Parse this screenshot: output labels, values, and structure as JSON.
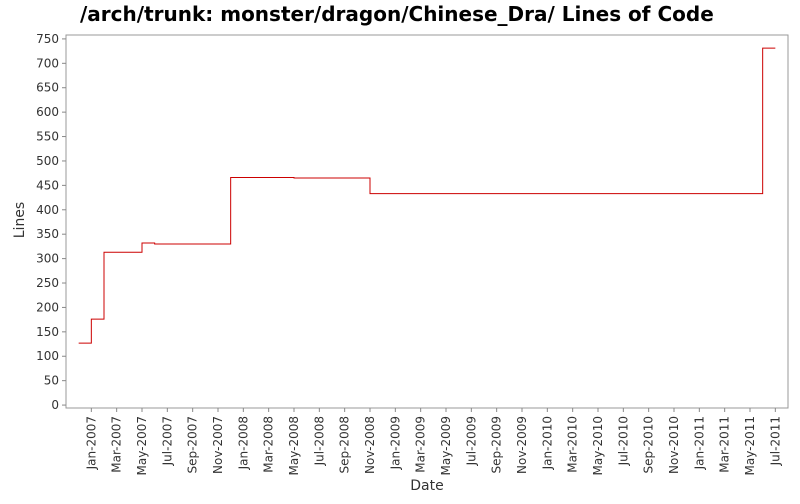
{
  "chart_data": {
    "type": "step",
    "title": "/arch/trunk: monster/dragon/Chinese_Dra/ Lines of Code",
    "x_label": "Date",
    "y_label": "Lines",
    "color": "#cc0000",
    "x": [
      "2006-12",
      "2007-01",
      "2007-02",
      "2007-05",
      "2007-06",
      "2007-12",
      "2008-05",
      "2008-11",
      "2011-06",
      "2011-07"
    ],
    "values": [
      127,
      176,
      313,
      332,
      330,
      466,
      465,
      433,
      731,
      731
    ],
    "xlim": [
      "2006-11",
      "2011-08"
    ],
    "xticks": [
      {
        "value": "2007-01",
        "label": "Jan-2007"
      },
      {
        "value": "2007-03",
        "label": "Mar-2007"
      },
      {
        "value": "2007-05",
        "label": "May-2007"
      },
      {
        "value": "2007-07",
        "label": "Jul-2007"
      },
      {
        "value": "2007-09",
        "label": "Sep-2007"
      },
      {
        "value": "2007-11",
        "label": "Nov-2007"
      },
      {
        "value": "2008-01",
        "label": "Jan-2008"
      },
      {
        "value": "2008-03",
        "label": "Mar-2008"
      },
      {
        "value": "2008-05",
        "label": "May-2008"
      },
      {
        "value": "2008-07",
        "label": "Jul-2008"
      },
      {
        "value": "2008-09",
        "label": "Sep-2008"
      },
      {
        "value": "2008-11",
        "label": "Nov-2008"
      },
      {
        "value": "2009-01",
        "label": "Jan-2009"
      },
      {
        "value": "2009-03",
        "label": "Mar-2009"
      },
      {
        "value": "2009-05",
        "label": "May-2009"
      },
      {
        "value": "2009-07",
        "label": "Jul-2009"
      },
      {
        "value": "2009-09",
        "label": "Sep-2009"
      },
      {
        "value": "2009-11",
        "label": "Nov-2009"
      },
      {
        "value": "2010-01",
        "label": "Jan-2010"
      },
      {
        "value": "2010-03",
        "label": "Mar-2010"
      },
      {
        "value": "2010-05",
        "label": "May-2010"
      },
      {
        "value": "2010-07",
        "label": "Jul-2010"
      },
      {
        "value": "2010-09",
        "label": "Sep-2010"
      },
      {
        "value": "2010-11",
        "label": "Nov-2010"
      },
      {
        "value": "2011-01",
        "label": "Jan-2011"
      },
      {
        "value": "2011-03",
        "label": "Mar-2011"
      },
      {
        "value": "2011-05",
        "label": "May-2011"
      },
      {
        "value": "2011-07",
        "label": "Jul-2011"
      }
    ],
    "ylim": [
      -6,
      758
    ],
    "yticks": [
      0,
      50,
      100,
      150,
      200,
      250,
      300,
      350,
      400,
      450,
      500,
      550,
      600,
      650,
      700,
      750
    ]
  }
}
